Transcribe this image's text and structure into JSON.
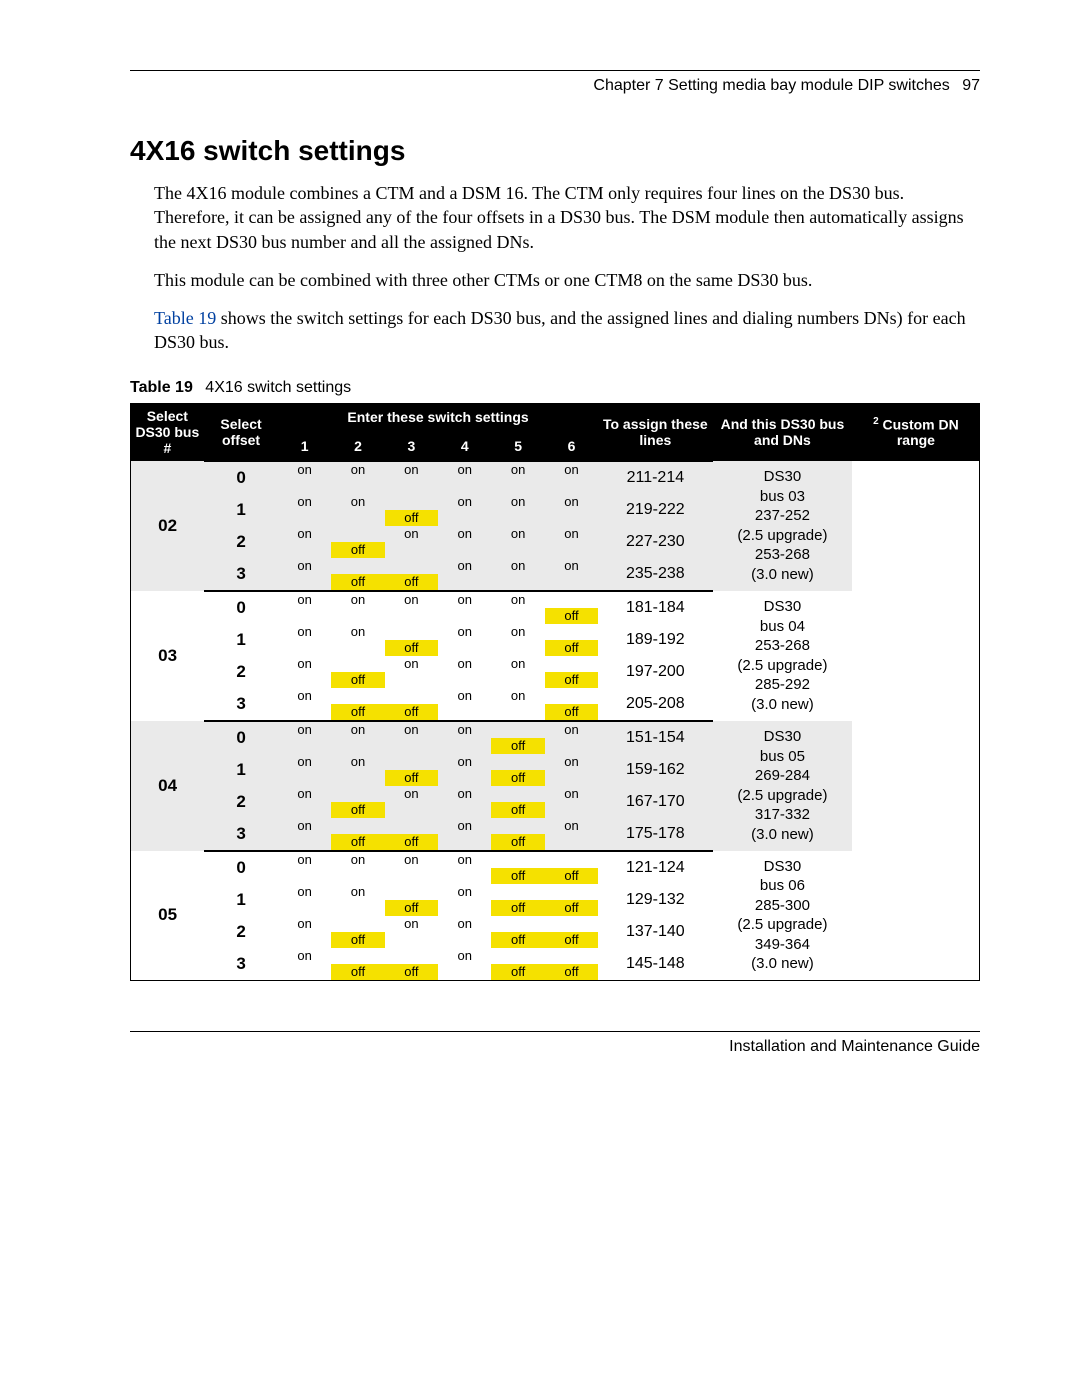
{
  "header": {
    "chapter": "Chapter 7  Setting media bay module DIP switches",
    "page": "97"
  },
  "title": "4X16 switch settings",
  "paras": {
    "p1": "The 4X16 module combines a CTM and a DSM 16. The CTM only requires four lines on the DS30 bus. Therefore, it can be assigned any of the four offsets in a DS30 bus. The DSM module then automatically assigns the next DS30 bus number and all the assigned DNs.",
    "p2": "This module can be combined with three other CTMs or one CTM8 on the same DS30 bus.",
    "p3a": "Table 19",
    "p3b": " shows the switch settings for each DS30 bus, and the assigned lines and dialing numbers DNs) for each DS30 bus."
  },
  "table": {
    "caption_bold": "Table 19",
    "caption_rest": "4X16 switch settings",
    "headers": {
      "bus": "Select DS30 bus #",
      "offset": "Select offset",
      "switches": "Enter these switch settings",
      "sw": [
        "1",
        "2",
        "3",
        "4",
        "5",
        "6"
      ],
      "lines": "To assign these lines",
      "ds30": "And this DS30 bus and DNs",
      "dn_sup": "2",
      "dn": "Custom DN range"
    },
    "groups": [
      {
        "bus": "02",
        "grey": true,
        "ds30": [
          "DS30",
          "bus 03",
          "237-252",
          "(2.5 upgrade)",
          "253-268",
          "(3.0 new)"
        ],
        "rows": [
          {
            "offset": "0",
            "sw": [
              [
                "on",
                ""
              ],
              [
                "on",
                ""
              ],
              [
                "on",
                ""
              ],
              [
                "on",
                ""
              ],
              [
                "on",
                ""
              ],
              [
                "on",
                ""
              ]
            ],
            "lines": "211-214"
          },
          {
            "offset": "1",
            "sw": [
              [
                "on",
                ""
              ],
              [
                "on",
                ""
              ],
              [
                "",
                "off"
              ],
              [
                "on",
                ""
              ],
              [
                "on",
                ""
              ],
              [
                "on",
                ""
              ]
            ],
            "lines": "219-222"
          },
          {
            "offset": "2",
            "sw": [
              [
                "on",
                ""
              ],
              [
                "",
                "off"
              ],
              [
                "on",
                ""
              ],
              [
                "on",
                ""
              ],
              [
                "on",
                ""
              ],
              [
                "on",
                ""
              ]
            ],
            "lines": "227-230"
          },
          {
            "offset": "3",
            "sw": [
              [
                "on",
                ""
              ],
              [
                "",
                "off"
              ],
              [
                "",
                "off"
              ],
              [
                "on",
                ""
              ],
              [
                "on",
                ""
              ],
              [
                "on",
                ""
              ]
            ],
            "lines": "235-238"
          }
        ]
      },
      {
        "bus": "03",
        "grey": false,
        "ds30": [
          "DS30",
          "bus 04",
          "253-268",
          "(2.5 upgrade)",
          "285-292",
          "(3.0 new)"
        ],
        "rows": [
          {
            "offset": "0",
            "sw": [
              [
                "on",
                ""
              ],
              [
                "on",
                ""
              ],
              [
                "on",
                ""
              ],
              [
                "on",
                ""
              ],
              [
                "on",
                ""
              ],
              [
                "",
                "off"
              ]
            ],
            "lines": "181-184"
          },
          {
            "offset": "1",
            "sw": [
              [
                "on",
                ""
              ],
              [
                "on",
                ""
              ],
              [
                "",
                "off"
              ],
              [
                "on",
                ""
              ],
              [
                "on",
                ""
              ],
              [
                "",
                "off"
              ]
            ],
            "lines": "189-192"
          },
          {
            "offset": "2",
            "sw": [
              [
                "on",
                ""
              ],
              [
                "",
                "off"
              ],
              [
                "on",
                ""
              ],
              [
                "on",
                ""
              ],
              [
                "on",
                ""
              ],
              [
                "",
                "off"
              ]
            ],
            "lines": "197-200"
          },
          {
            "offset": "3",
            "sw": [
              [
                "on",
                ""
              ],
              [
                "",
                "off"
              ],
              [
                "",
                "off"
              ],
              [
                "on",
                ""
              ],
              [
                "on",
                ""
              ],
              [
                "",
                "off"
              ]
            ],
            "lines": "205-208"
          }
        ]
      },
      {
        "bus": "04",
        "grey": true,
        "ds30": [
          "DS30",
          "bus 05",
          "269-284",
          "(2.5 upgrade)",
          "317-332",
          "(3.0 new)"
        ],
        "rows": [
          {
            "offset": "0",
            "sw": [
              [
                "on",
                ""
              ],
              [
                "on",
                ""
              ],
              [
                "on",
                ""
              ],
              [
                "on",
                ""
              ],
              [
                "",
                "off"
              ],
              [
                "on",
                ""
              ]
            ],
            "lines": "151-154"
          },
          {
            "offset": "1",
            "sw": [
              [
                "on",
                ""
              ],
              [
                "on",
                ""
              ],
              [
                "",
                "off"
              ],
              [
                "on",
                ""
              ],
              [
                "",
                "off"
              ],
              [
                "on",
                ""
              ]
            ],
            "lines": "159-162"
          },
          {
            "offset": "2",
            "sw": [
              [
                "on",
                ""
              ],
              [
                "",
                "off"
              ],
              [
                "on",
                ""
              ],
              [
                "on",
                ""
              ],
              [
                "",
                "off"
              ],
              [
                "on",
                ""
              ]
            ],
            "lines": "167-170"
          },
          {
            "offset": "3",
            "sw": [
              [
                "on",
                ""
              ],
              [
                "",
                "off"
              ],
              [
                "",
                "off"
              ],
              [
                "on",
                ""
              ],
              [
                "",
                "off"
              ],
              [
                "on",
                ""
              ]
            ],
            "lines": "175-178"
          }
        ]
      },
      {
        "bus": "05",
        "grey": false,
        "ds30": [
          "DS30",
          "bus 06",
          "285-300",
          "(2.5 upgrade)",
          "349-364",
          "(3.0 new)"
        ],
        "rows": [
          {
            "offset": "0",
            "sw": [
              [
                "on",
                ""
              ],
              [
                "on",
                ""
              ],
              [
                "on",
                ""
              ],
              [
                "on",
                ""
              ],
              [
                "",
                "off"
              ],
              [
                "",
                "off"
              ]
            ],
            "lines": "121-124"
          },
          {
            "offset": "1",
            "sw": [
              [
                "on",
                ""
              ],
              [
                "on",
                ""
              ],
              [
                "",
                "off"
              ],
              [
                "on",
                ""
              ],
              [
                "",
                "off"
              ],
              [
                "",
                "off"
              ]
            ],
            "lines": "129-132"
          },
          {
            "offset": "2",
            "sw": [
              [
                "on",
                ""
              ],
              [
                "",
                "off"
              ],
              [
                "on",
                ""
              ],
              [
                "on",
                ""
              ],
              [
                "",
                "off"
              ],
              [
                "",
                "off"
              ]
            ],
            "lines": "137-140"
          },
          {
            "offset": "3",
            "sw": [
              [
                "on",
                ""
              ],
              [
                "",
                "off"
              ],
              [
                "",
                "off"
              ],
              [
                "on",
                ""
              ],
              [
                "",
                "off"
              ],
              [
                "",
                "off"
              ]
            ],
            "lines": "145-148"
          }
        ]
      }
    ]
  },
  "footer": "Installation and Maintenance Guide"
}
